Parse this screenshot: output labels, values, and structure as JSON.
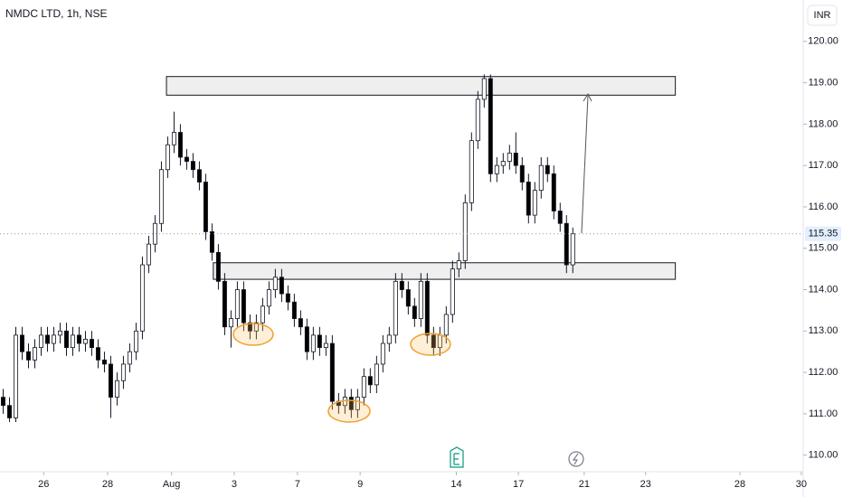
{
  "chart_data": {
    "type": "candlestick",
    "title": "NMDC LTD, 1h, NSE",
    "currency": "INR",
    "last_price": 115.35,
    "ylim": [
      109.6,
      121.0
    ],
    "yticks": [
      {
        "value": 110,
        "label": "110.00"
      },
      {
        "value": 111,
        "label": "111.00"
      },
      {
        "value": 112,
        "label": "112.00"
      },
      {
        "value": 113,
        "label": "113.00"
      },
      {
        "value": 114,
        "label": "114.00"
      },
      {
        "value": 115,
        "label": "115.00"
      },
      {
        "value": 116,
        "label": "116.00"
      },
      {
        "value": 117,
        "label": "117.00"
      },
      {
        "value": 118,
        "label": "118.00"
      },
      {
        "value": 119,
        "label": "119.00"
      },
      {
        "value": 120,
        "label": "120.00"
      }
    ],
    "xlim": [
      -0.5,
      126.4
    ],
    "xticks": [
      {
        "value": 6.4,
        "label": "26"
      },
      {
        "value": 16.5,
        "label": "28"
      },
      {
        "value": 26.6,
        "label": "Aug"
      },
      {
        "value": 36.5,
        "label": "3"
      },
      {
        "value": 46.5,
        "label": "7"
      },
      {
        "value": 56.4,
        "label": "9"
      },
      {
        "value": 71.6,
        "label": "14"
      },
      {
        "value": 81.4,
        "label": "17"
      },
      {
        "value": 91.8,
        "label": "21"
      },
      {
        "value": 101.5,
        "label": "23"
      },
      {
        "value": 116.4,
        "label": "28"
      },
      {
        "value": 126.1,
        "label": "30"
      }
    ],
    "up_color": "#ffffff",
    "down_color": "#000000",
    "x": [
      0,
      1,
      2,
      3,
      4,
      5,
      6,
      7,
      8,
      9,
      10,
      11,
      12,
      13,
      14,
      15,
      16,
      17,
      18,
      19,
      20,
      21,
      22,
      23,
      24,
      25,
      26,
      27,
      28,
      29,
      30,
      31,
      32,
      33,
      34,
      35,
      36,
      37,
      38,
      39,
      40,
      41,
      42,
      43,
      44,
      45,
      46,
      47,
      48,
      49,
      50,
      51,
      52,
      53,
      54,
      55,
      56,
      57,
      58,
      59,
      60,
      61,
      62,
      63,
      64,
      65,
      66,
      67,
      68,
      69,
      70,
      71,
      72,
      73,
      74,
      75,
      76,
      77,
      78,
      79,
      80,
      81,
      82,
      83,
      84,
      85,
      86,
      87,
      88,
      89,
      90
    ],
    "open": [
      111.4,
      111.2,
      110.9,
      112.9,
      112.5,
      112.3,
      112.6,
      112.9,
      112.7,
      112.9,
      113.0,
      112.6,
      112.9,
      112.7,
      112.8,
      112.6,
      112.3,
      112.2,
      111.4,
      111.8,
      112.2,
      112.5,
      113.0,
      114.6,
      115.1,
      115.6,
      116.9,
      117.5,
      117.8,
      117.2,
      117.1,
      116.9,
      116.6,
      115.4,
      114.9,
      114.2,
      113.1,
      113.3,
      114.0,
      113.2,
      113.0,
      113.2,
      113.6,
      114.0,
      114.3,
      113.9,
      113.7,
      113.3,
      113.1,
      112.5,
      112.9,
      112.6,
      112.7,
      111.3,
      111.2,
      111.4,
      111.1,
      111.4,
      111.9,
      111.7,
      112.2,
      112.7,
      112.9,
      114.2,
      114.0,
      113.6,
      113.3,
      114.2,
      112.9,
      112.6,
      112.9,
      113.4,
      114.5,
      114.7,
      116.1,
      117.6,
      118.6,
      119.1,
      116.8,
      117.0,
      117.1,
      117.3,
      117.0,
      116.6,
      115.8,
      116.4,
      117.0,
      116.8,
      115.9,
      115.6,
      114.6
    ],
    "high": [
      111.6,
      111.4,
      113.1,
      113.1,
      112.7,
      112.8,
      113.1,
      113.1,
      113.1,
      113.2,
      113.2,
      113.1,
      113.1,
      113.0,
      113.0,
      112.8,
      112.5,
      112.4,
      112.0,
      112.4,
      112.7,
      113.2,
      114.8,
      115.3,
      115.8,
      117.1,
      117.7,
      118.3,
      118.0,
      117.4,
      117.3,
      117.1,
      116.8,
      115.6,
      115.1,
      114.4,
      113.5,
      114.2,
      114.2,
      113.4,
      113.4,
      113.8,
      114.2,
      114.5,
      114.5,
      114.1,
      113.9,
      113.5,
      113.3,
      113.1,
      113.1,
      112.9,
      112.9,
      111.5,
      111.6,
      111.6,
      111.6,
      112.1,
      112.1,
      112.4,
      112.9,
      113.1,
      114.4,
      114.4,
      114.2,
      113.8,
      114.4,
      114.4,
      113.1,
      113.1,
      113.6,
      114.7,
      114.9,
      116.3,
      117.8,
      118.8,
      119.2,
      119.2,
      117.2,
      117.3,
      117.5,
      117.8,
      117.2,
      116.8,
      116.6,
      117.2,
      117.2,
      117.0,
      116.1,
      115.8,
      115.5
    ],
    "low": [
      111.0,
      110.8,
      110.8,
      112.3,
      112.1,
      112.1,
      112.4,
      112.5,
      112.5,
      112.7,
      112.4,
      112.4,
      112.5,
      112.5,
      112.4,
      112.1,
      112.0,
      110.9,
      111.2,
      111.6,
      112.0,
      112.3,
      112.8,
      114.4,
      114.9,
      115.4,
      116.7,
      117.3,
      117.0,
      116.9,
      116.7,
      116.4,
      115.2,
      114.7,
      114.0,
      112.9,
      112.6,
      113.1,
      113.0,
      112.8,
      112.8,
      113.0,
      113.4,
      113.8,
      113.7,
      113.5,
      113.1,
      112.9,
      112.3,
      112.3,
      112.4,
      112.4,
      111.1,
      111.0,
      111.0,
      110.9,
      110.9,
      111.2,
      111.5,
      111.5,
      112.0,
      112.5,
      112.7,
      113.8,
      113.4,
      113.1,
      113.1,
      112.7,
      112.4,
      112.4,
      112.7,
      113.2,
      114.3,
      114.5,
      115.9,
      117.4,
      118.4,
      116.6,
      116.6,
      116.8,
      116.9,
      116.8,
      116.4,
      115.6,
      115.6,
      116.2,
      116.6,
      115.7,
      115.4,
      114.4,
      114.4
    ],
    "close": [
      111.2,
      110.9,
      112.9,
      112.5,
      112.3,
      112.6,
      112.9,
      112.7,
      112.9,
      113.0,
      112.6,
      112.9,
      112.7,
      112.8,
      112.6,
      112.3,
      112.2,
      111.4,
      111.8,
      112.2,
      112.5,
      113.0,
      114.6,
      115.1,
      115.6,
      116.9,
      117.5,
      117.8,
      117.2,
      117.1,
      116.9,
      116.6,
      115.4,
      114.9,
      114.2,
      113.1,
      113.3,
      114.0,
      113.2,
      113.0,
      113.2,
      113.6,
      114.0,
      114.3,
      113.9,
      113.7,
      113.3,
      113.1,
      112.5,
      112.9,
      112.6,
      112.7,
      111.3,
      111.2,
      111.4,
      111.1,
      111.4,
      111.9,
      111.7,
      112.2,
      112.7,
      112.9,
      114.2,
      114.0,
      113.6,
      113.3,
      114.2,
      112.9,
      112.6,
      112.9,
      113.4,
      114.5,
      114.7,
      116.1,
      117.6,
      118.6,
      119.1,
      116.8,
      117.0,
      117.1,
      117.3,
      117.0,
      116.6,
      115.8,
      116.4,
      117.0,
      116.8,
      115.9,
      115.6,
      114.6,
      115.35
    ],
    "zones": [
      {
        "top": 119.15,
        "bottom": 118.7,
        "x_start": 25.8,
        "x_end": 106.2
      },
      {
        "top": 114.65,
        "bottom": 114.25,
        "x_start": 33.2,
        "x_end": 106.2
      }
    ]
  }
}
